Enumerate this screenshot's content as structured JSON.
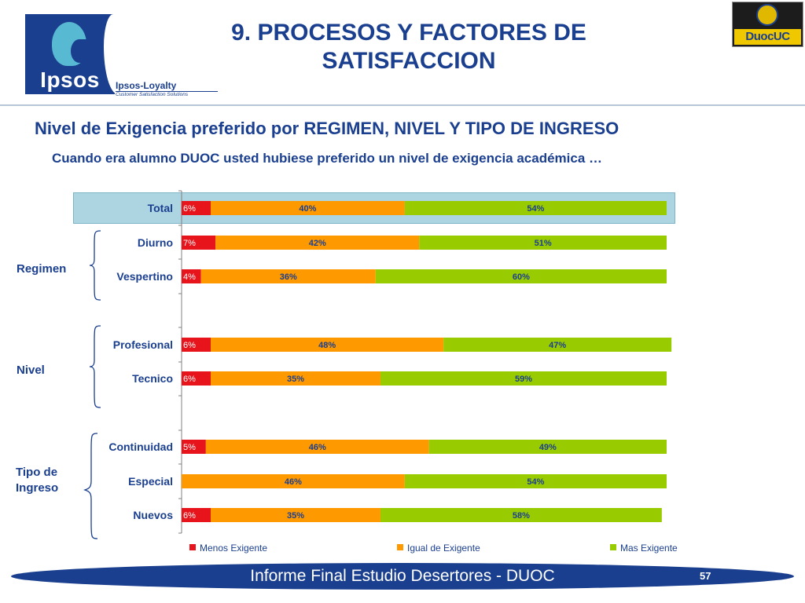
{
  "header": {
    "title_line1": "9. PROCESOS Y FACTORES DE",
    "title_line2": "SATISFACCION",
    "ipsos_logo_text": "Ipsos",
    "ipsos_loyalty_title": "Ipsos-Loyalty",
    "ipsos_loyalty_subtitle": "Customer Satisfaction Solutions",
    "duoc_logo_text": "DuocUC"
  },
  "subtitle": "Nivel de Exigencia preferido por REGIMEN, NIVEL Y TIPO DE INGRESO",
  "question": "Cuando era alumno DUOC usted hubiese preferido un nivel de exigencia académica …",
  "groups": {
    "regimen": "Regimen",
    "nivel": "Nivel",
    "tipo_line1": "Tipo de",
    "tipo_line2": "Ingreso"
  },
  "footer": {
    "text": "Informe Final Estudio Desertores - DUOC",
    "page_number": "57"
  },
  "colors": {
    "menos": "#e8141c",
    "igual": "#ff9900",
    "mas": "#99cc00",
    "brand_blue": "#1b3f8f"
  },
  "chart_data": {
    "type": "bar",
    "orientation": "horizontal",
    "stacked": true,
    "categories": [
      "Total",
      "Diurno",
      "Vespertino",
      "Profesional",
      "Tecnico",
      "Continuidad",
      "Especial",
      "Nuevos"
    ],
    "series": [
      {
        "name": "Menos Exigente",
        "values": [
          6,
          7,
          4,
          6,
          6,
          5,
          0,
          6
        ],
        "labels": [
          "6%",
          "7%",
          "4%",
          "6%",
          "6%",
          "5%",
          "",
          "6%"
        ]
      },
      {
        "name": "Igual de Exigente",
        "values": [
          40,
          42,
          36,
          48,
          35,
          46,
          46,
          35
        ],
        "labels": [
          "40%",
          "42%",
          "36%",
          "48%",
          "35%",
          "46%",
          "46%",
          "35%"
        ]
      },
      {
        "name": "Mas Exigente",
        "values": [
          54,
          51,
          60,
          47,
          59,
          49,
          54,
          58
        ],
        "labels": [
          "54%",
          "51%",
          "60%",
          "47%",
          "59%",
          "49%",
          "54%",
          "58%"
        ]
      }
    ],
    "legend_position": "bottom",
    "xlim": [
      0,
      100
    ]
  }
}
